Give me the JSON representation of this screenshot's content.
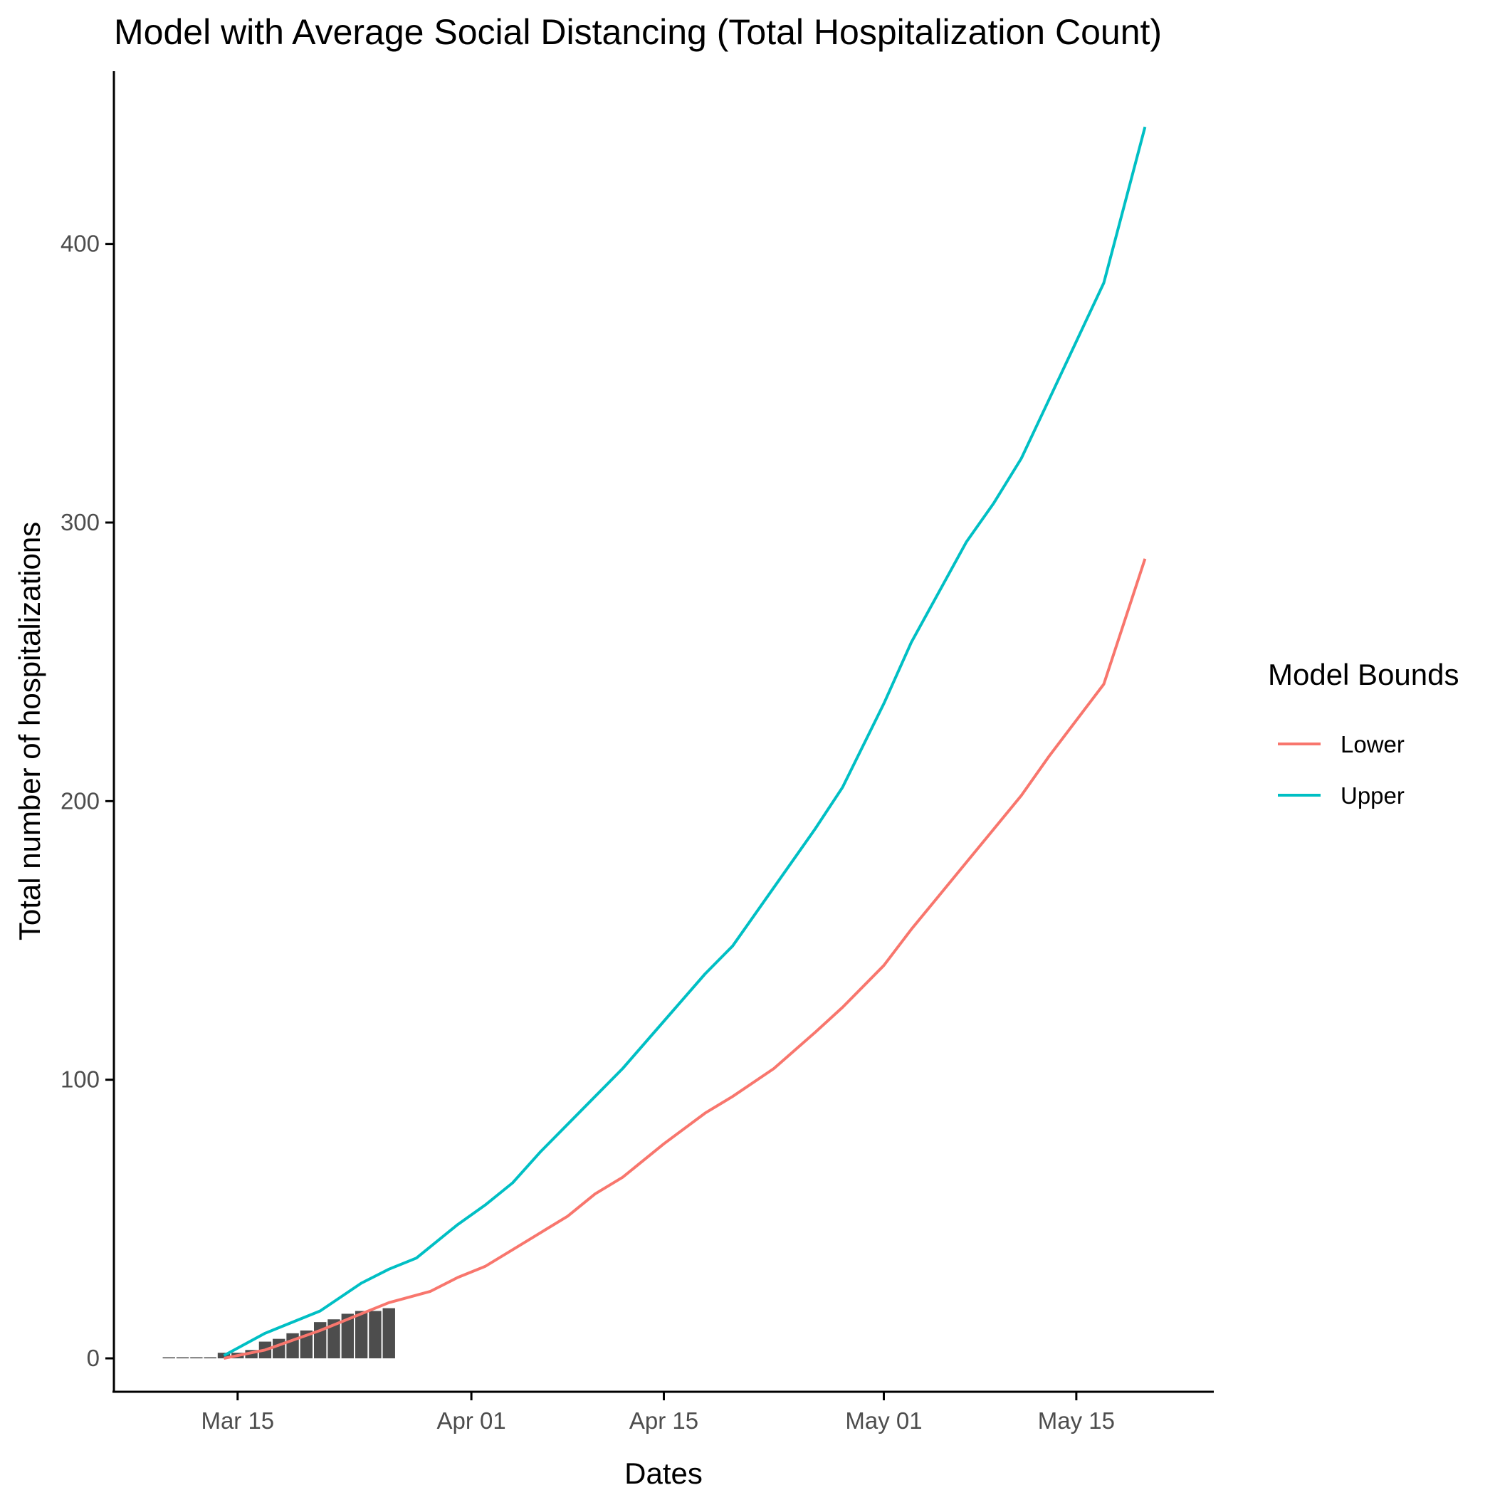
{
  "chart_data": {
    "type": "line",
    "title": "Model with Average Social Distancing (Total Hospitalization Count)",
    "xlabel": "Dates",
    "ylabel": "Total number of hospitalizations",
    "x_ticks": [
      "Mar 15",
      "Apr 01",
      "Apr 15",
      "May 01",
      "May 15"
    ],
    "x_tick_dates": [
      "2020-03-15",
      "2020-04-01",
      "2020-04-15",
      "2020-05-01",
      "2020-05-15"
    ],
    "xlim": [
      "2020-03-06",
      "2020-05-25"
    ],
    "y_ticks": [
      0,
      100,
      200,
      300,
      400
    ],
    "ylim": [
      -12,
      462
    ],
    "grid": false,
    "legend": {
      "title": "Model Bounds",
      "placement": "right"
    },
    "colors": {
      "Lower": "#F8766D",
      "Upper": "#00BFC4",
      "bars": "#4d4d4d"
    },
    "observed": {
      "dates": [
        "2020-03-10",
        "2020-03-11",
        "2020-03-12",
        "2020-03-13",
        "2020-03-14",
        "2020-03-15",
        "2020-03-16",
        "2020-03-17",
        "2020-03-18",
        "2020-03-19",
        "2020-03-20",
        "2020-03-21",
        "2020-03-22",
        "2020-03-23",
        "2020-03-24",
        "2020-03-25",
        "2020-03-26"
      ],
      "values": [
        0,
        0,
        0,
        0,
        2,
        2,
        3,
        6,
        7,
        9,
        10,
        13,
        14,
        16,
        17,
        17,
        18
      ]
    },
    "series": [
      {
        "name": "Lower",
        "dates": [
          "2020-03-14",
          "2020-03-17",
          "2020-03-21",
          "2020-03-24",
          "2020-03-26",
          "2020-03-29",
          "2020-03-31",
          "2020-04-02",
          "2020-04-04",
          "2020-04-06",
          "2020-04-08",
          "2020-04-10",
          "2020-04-12",
          "2020-04-15",
          "2020-04-18",
          "2020-04-20",
          "2020-04-23",
          "2020-04-26",
          "2020-04-28",
          "2020-05-01",
          "2020-05-03",
          "2020-05-05",
          "2020-05-07",
          "2020-05-09",
          "2020-05-11",
          "2020-05-13",
          "2020-05-15",
          "2020-05-17",
          "2020-05-20"
        ],
        "values": [
          0,
          3,
          10,
          16,
          20,
          24,
          29,
          33,
          39,
          45,
          51,
          59,
          65,
          77,
          88,
          94,
          104,
          117,
          126,
          141,
          154,
          166,
          178,
          190,
          202,
          216,
          229,
          242,
          287
        ]
      },
      {
        "name": "Upper",
        "dates": [
          "2020-03-14",
          "2020-03-17",
          "2020-03-21",
          "2020-03-24",
          "2020-03-26",
          "2020-03-28",
          "2020-03-31",
          "2020-04-02",
          "2020-04-04",
          "2020-04-06",
          "2020-04-08",
          "2020-04-10",
          "2020-04-12",
          "2020-04-15",
          "2020-04-18",
          "2020-04-20",
          "2020-04-23",
          "2020-04-26",
          "2020-04-28",
          "2020-05-01",
          "2020-05-03",
          "2020-05-05",
          "2020-05-07",
          "2020-05-09",
          "2020-05-11",
          "2020-05-13",
          "2020-05-15",
          "2020-05-17",
          "2020-05-20"
        ],
        "values": [
          1,
          9,
          17,
          27,
          32,
          36,
          48,
          55,
          63,
          74,
          84,
          94,
          104,
          121,
          138,
          148,
          169,
          190,
          205,
          235,
          257,
          275,
          293,
          307,
          323,
          344,
          365,
          386,
          442
        ]
      }
    ]
  }
}
